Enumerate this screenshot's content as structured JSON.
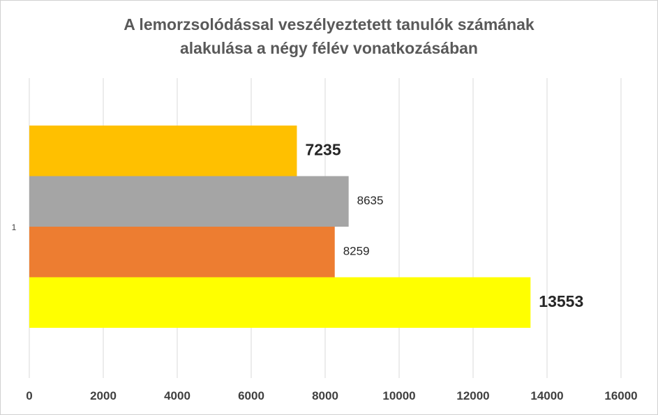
{
  "chart_data": {
    "type": "bar",
    "orientation": "horizontal",
    "title_lines": [
      "A lemorzsolódással veszélyeztetett tanulók számának",
      "alakulása a négy félév vonatkozásában"
    ],
    "categories": [
      "1"
    ],
    "series": [
      {
        "values": [
          7235
        ],
        "color": "#FFC000",
        "label_bold": true
      },
      {
        "values": [
          8635
        ],
        "color": "#A5A5A5",
        "label_bold": false
      },
      {
        "values": [
          8259
        ],
        "color": "#ED7D31",
        "label_bold": false
      },
      {
        "values": [
          13553
        ],
        "color": "#FFFF00",
        "label_bold": true
      }
    ],
    "xlim": [
      0,
      16000
    ],
    "xticks": [
      "0",
      "2000",
      "4000",
      "6000",
      "8000",
      "10000",
      "12000",
      "14000",
      "16000"
    ],
    "grid": true,
    "legend": "none",
    "gridline_color": "#d9d9d9"
  }
}
